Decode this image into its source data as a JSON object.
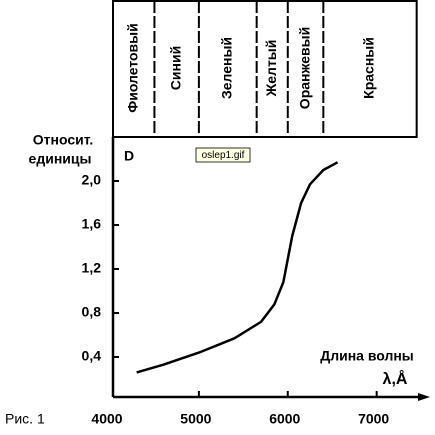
{
  "chart_data": {
    "type": "line",
    "y_label_lines": [
      "Относит.",
      "единицы"
    ],
    "x_label": "Длина волны",
    "x_unit": "λ,Å",
    "annotation": "D",
    "file_label": "oslep1.gif",
    "figure_label": "Рис. 1",
    "bands": [
      "Фиолетовый",
      "Синий",
      "Зеленый",
      "Желтый",
      "Оранжевый",
      "Красный"
    ],
    "band_edges": [
      4000,
      4500,
      5000,
      5650,
      6000,
      6400,
      7450
    ],
    "x": [
      4300,
      4600,
      5000,
      5400,
      5700,
      5850,
      5950,
      6050,
      6150,
      6250,
      6400,
      6560
    ],
    "values": [
      0.26,
      0.33,
      0.44,
      0.57,
      0.72,
      0.88,
      1.08,
      1.5,
      1.8,
      1.97,
      2.1,
      2.17
    ],
    "color": "#000000",
    "xlim": [
      4000,
      7600
    ],
    "xticks": [
      4000,
      5000,
      6000,
      7000
    ],
    "ylim": [
      0,
      2.4
    ],
    "yticks": [
      {
        "value": 0.4,
        "label": "0,4"
      },
      {
        "value": 0.8,
        "label": "0,8"
      },
      {
        "value": 1.2,
        "label": "1,2"
      },
      {
        "value": 1.6,
        "label": "1,6"
      },
      {
        "value": 2.0,
        "label": "2,0"
      }
    ]
  }
}
